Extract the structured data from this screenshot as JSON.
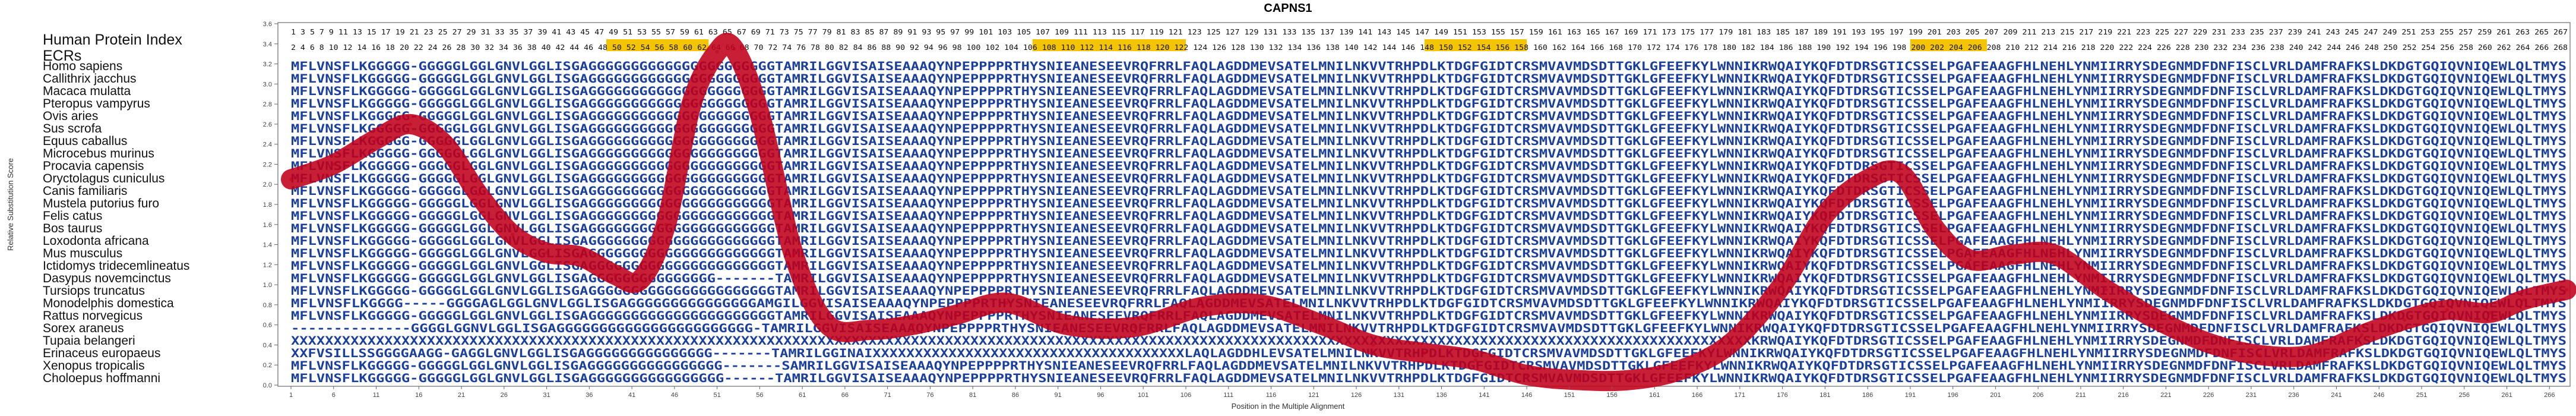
{
  "colors": {
    "curve": "#c0001a",
    "sequence": "#1b3f9c",
    "ecr_band": "#f5c400",
    "mismatch": "#3aa8e0",
    "frame": "#888888"
  },
  "header": {
    "human_index_label": "Human Protein Index",
    "ecr_label": "ECRs",
    "human_index_row1": "1 3 5 7 9 11 13 15 17 19 21 23 25 27 29 31 33 35 37 39 41 43 45 47 49 51 53 55 57 59 61 63 65 67 69 71 73 75 77 79 81 83 85 87 89 91 93 95 97 99 101 103 105 107 109 111 113 115 117 119 121 123 125 127 129 131 133 135 137 139 141 143 145 147 149 151 153 155 157 159 161 163 165 167 169 171 173 175 177 179 181 183 185 187 189 191 193 195 197 199 201 203 205 207 209 211 213 215 217 219 221 223 225 227 229 231 233 235 237 239 241 243 245 247 249 251 253 255 257 259 261 263 265 267",
    "human_index_row2": "2 4 6 8 10 12 14 16 18 20 22 24 26 28 30 32 34 36 38 40 42 44 46 48 50 52 54 56 58 60 62 64 66 68 70 72 74 76 78 80 82 84 86 88 90 92 94 96 98 100 102 104 106 108 110 112 114 116 118 120 122 124 126 128 130 132 134 136 138 140 142 144 146 148 150 152 154 156 158 160 162 164 166 168 170 172 174 176 178 180 182 184 186 188 190 192 194 196 198 200 202 204 206 208 210 212 214 216 218 220 222 224 226 228 230 232 234 236 238 240 242 244 246 248 250 252 254 256 258 260 262 264 266 268"
  },
  "sequences": [
    {
      "species": "Homo sapiens",
      "seq": "MFLVNSFLKGGGGG-GGGGGLGGLGNVLGGLISGAGGGGGGGGGGGGGGGGGGGGGGTAMRILGGVISAISEAAAQYNPEPPPPRTHYSNIEANESEEVRQFRRLFAQLAGDDMEVSATELMNILNKVVTRHPDLKTDGFGIDTCRSMVAVMDSDTTGKLGFEEFKYLWNNIKRWQAIYKQFDTDRSGTICSSELPGAFEAAGFHLNEHLYNMIIRRYSDEGNMDFDNFISCLVRLDAMFRAFKSLDKDGTGQIQVNIQEWLQLTMYS"
    },
    {
      "species": "Callithrix jacchus",
      "seq": "MFLVNSFLKGGGGG-GGGGGLGGLGNVLGGLISGAGGGGGGGGGGGGGGGGGGGGGGTAMRILGGVISAISEAAAQYNPEPPPPRTHYSNIEANESEEVRQFRRLFAQLAGDDMEVSATELMNILNKVVTRHPDLKTDGFGIDTCRSMVAVMDSDTTGKLGFEEFKYLWNNIKRWQAIYKQFDTDRSGTICSSELPGAFEAAGFHLNEHLYNMIIRRYSDEGNMDFDNFISCLVRLDAMFRAFKSLDKDGTGQIQVNIQEWLQLTMYS"
    },
    {
      "species": "Macaca mulatta",
      "seq": "MFLVNSFLKGGGGG-GGGGGLGGLGNVLGGLISGAGGGGGGGGGGGGGGGGGGGGGGTAMRILGGVISAISEAAAQYNPEPPPPRTHYSNIEANESEEVRQFRRLFAQLAGDDMEVSATELMNILNKVVTRHPDLKTDGFGIDTCRSMVAVMDSDTTGKLGFEEFKYLWNNIKRWQAIYKQFDTDRSGTICSSELPGAFEAAGFHLNEHLYNMIIRRYSDEGNMDFDNFISCLVRLDAMFRAFKSLDKDGTGQIQVNIQEWLQLTMYS"
    },
    {
      "species": "Pteropus vampyrus",
      "seq": "MFLVNSFLKGGGGG-GGGGGLGGLGNVLGGLISGAGGGGGGGGGGGGGGGGGGGGGGTAMRILGGVISAISEAAAQYNPEPPPPRTHYSNIEANESEEVRQFRRLFAQLAGDDMEVSATELMNILNKVVTRHPDLKTDGFGIDTCRSMVAVMDSDTTGKLGFEEFKYLWNNIKRWQAIYKQFDTDRSGTICSSELPGAFEAAGFHLNEHLYNMIIRRYSDEGNMDFDNFISCLVRLDAMFRAFKSLDKDGTGQIQVNIQEWLQLTMYS"
    },
    {
      "species": "Ovis aries",
      "seq": "MFLVNSFLKGGGGG-GGGGGLGGLGNVLGGLISGAGGGGGGGGGGGGGGGGGGGGGGTAMRILGGVISAISEAAAQYNPEPPPPRTHYSNIEANESEEVRQFRRLFAQLAGDDMEVSATELMNILNKVVTRHPDLKTDGFGIDTCRSMVAVMDSDTTGKLGFEEFKYLWNNIKRWQAIYKQFDTDRSGTICSSELPGAFEAAGFHLNEHLYNMIIRRYSDEGNMDFDNFISCLVRLDAMFRAFKSLDKDGTGQIQVNIQEWLQLTMYS"
    },
    {
      "species": "Sus scrofa",
      "seq": "MFLVNSFLKGGGGG-GGGGGLGGLGNVLGGLISGAGGGGGGGGGGGGGGGGGGGGGGTAMRILGGVISAISEAAAQYNPEPPPPRTHYSNIEANESEEVRQFRRLFAQLAGDDMEVSATELMNILNKVVTRHPDLKTDGFGIDTCRSMVAVMDSDTTGKLGFEEFKYLWNNIKRWQAIYKQFDTDRSGTICSSELPGAFEAAGFHLNEHLYNMIIRRYSDEGNMDFDNFISCLVRLDAMFRAFKSLDKDGTGQIQVNIQEWLQLTMYS"
    },
    {
      "species": "Equus caballus",
      "seq": "MFLVNSFLKGGGGG-GGGGGLGGLGNVLGGLISGAGGGGGGGGGGGGGGGGGGGGGGTAMRILGGVISAISEAAAQYNPEPPPPRTHYSNIEANESEEVRQFRRLFAQLAGDDMEVSATELMNILNKVVTRHPDLKTDGFGIDTCRSMVAVMDSDTTGKLGFEEFKYLWNNIKRWQAIYKQFDTDRSGTICSSELPGAFEAAGFHLNEHLYNMIIRRYSDEGNMDFDNFISCLVRLDAMFRAFKSLDKDGTGQIQVNIQEWLQLTMYS"
    },
    {
      "species": "Microcebus murinus",
      "seq": "MFLVNSFLKGGGGG-GGGGGLGGLGNVLGGLISGAGGGGGGGGGGGGGGGGGGGGGGTAMRILGGVISAISEAAAQYNPEPPPPRTHYSNIEANESEEVRQFRRLFAQLAGDDMEVSATELMNILNKVVTRHPDLKTDGFGIDTCRSMVAVMDSDTTGKLGFEEFKYLWNNIKRWQAIYKQFDTDRSGTICSSELPGAFEAAGFHLNEHLYNMIIRRYSDEGNMDFDNFISCLVRLDAMFRAFKSLDKDGTGQIQVNIQEWLQLTMYS"
    },
    {
      "species": "Procavia capensis",
      "seq": "MFLVNSFLKGGGGG-GGGGGLGGLGNVLGGLISGAGGGGGGGGGGGGGGGGGGGGGGTAMRILGGVISAISEAAAQYNPEPPPPRTHYSNIEANESEEVRQFRRLFAQLAGDDMEVSATELMNILNKVVTRHPDLKTDGFGIDTCRSMVAVMDSDTTGKLGFEEFKYLWNNIKRWQAIYKQFDTDRSGTICSSELPGAFEAAGFHLNEHLYNMIIRRYSDEGNMDFDNFISCLVRLDAMFRAFKSLDKDGTGQIQVNIQEWLQLTMYS"
    },
    {
      "species": "Oryctolagus cuniculus",
      "seq": "MFLVNSFLKGGGGG-GGGGGLGGLGNVLGGLISGAGGGGGGGGGGGGGGGGGGGGGGTAMRILGGVISAISEAAAQYNPEPPPPRTHYSNIEANESEEVRQFRRLFAQLAGDDMEVSATELMNILNKVVTRHPDLKTDGFGIDTCRSMVAVMDSDTTGKLGFEEFKYLWNNIKRWQAIYKQFDTDRSGTICSSELPGAFEAAGFHLNEHLYNMIIRRYSDEGNMDFDNFISCLVRLDAMFRAFKSLDKDGTGQIQVNIQEWLQLTMYS"
    },
    {
      "species": "Canis familiaris",
      "seq": "MFLVNSFLKGGGGG-GGGGGLGGLGNVLGGLISGAGGGGGGGGGGGGGGGGGGGGGGTAMRILGGVISAISEAAAQYNPEPPPPRTHYSNIEANESEEVRQFRRLFAQLAGDDMEVSATELMNILNKVVTRHPDLKTDGFGIDTCRSMVAVMDSDTTGKLGFEEFKYLWNNIKRWQAIYKQFDTDRSGTICSSELPGAFEAAGFHLNEHLYNMIIRRYSDEGNMDFDNFISCLVRLDAMFRAFKSLDKDGTGQIQVNIQEWLQLTMYS"
    },
    {
      "species": "Mustela putorius furo",
      "seq": "MFLVNSFLKGGGGG-GGGGGLGGLGNVLGGLISGAGGGGGGGGGGGGGGGGGGGGGGTAMRILGGVISAISEAAAQYNPEPPPPRTHYSNIEANESEEVRQFRRLFAQLAGDDMEVSATELMNILNKVVTRHPDLKTDGFGIDTCRSMVAVMDSDTTGKLGFEEFKYLWNNIKRWQAIYKQFDTDRSGTICSSELPGAFEAAGFHLNEHLYNMIIRRYSDEGNMDFDNFISCLVRLDAMFRAFKSLDKDGTGQIQVNIQEWLQLTMYS"
    },
    {
      "species": "Felis catus",
      "seq": "MFLVNSFLKGGGGG-GGGGGLGGLGNVLGGLISGAGGGGGGGGGGGGGGGGGGGGGGTAMRILGGVISAISEAAAQYNPEPPPPRTHYSNIEANESEEVRQFRRLFAQLAGDDMEVSATELMNILNKVVTRHPDLKTDGFGIDTCRSMVAVMDSDTTGKLGFEEFKYLWNNIKRWQAIYKQFDTDRSGTICSSELPGAFEAAGFHLNEHLYNMIIRRYSDEGNMDFDNFISCLVRLDAMFRAFKSLDKDGTGQIQVNIQEWLQLTMYS"
    },
    {
      "species": "Bos taurus",
      "seq": "MFLVNSFLKGGGGG-GGGGGLGGLGNVLGGLISGAGGGGGGGGGGGGGGGGGGGGGGTAMRILGGVISAISEAAAQYNPEPPPPRTHYSNIEANESEEVRQFRRLFAQLAGDDMEVSATELMNILNKVVTRHPDLKTDGFGIDTCRSMVAVMDSDTTGKLGFEEFKYLWNNIKRWQAIYKQFDTDRSGTICSSELPGAFEAAGFHLNEHLYNMIIRRYSDEGNMDFDNFISCLVRLDAMFRAFKSLDKDGTGQIQVNIQEWLQLTMYS"
    },
    {
      "species": "Loxodonta africana",
      "seq": "MFLVNSFLKGGGGG-GGGGGLGGLGNVLGGLISGAGGGGGGGGGGGGGGGGGGGGGGTAMRILGGVISAISEAAAQYNPEPPPPRTHYSNIEANESEEVRQFRRLFAQLAGDDMEVSATELMNILNKVVTRHPDLKTDGFGIDTCRSMVAVMDSDTTGKLGFEEFKYLWNNIKRWQAIYKQFDTDRSGTICSSELPGAFEAAGFHLNEHLYNMIIRRYSDEGNMDFDNFISCLVRLDAMFRAFKSLDKDGTGQIQVNIQEWLQLTMYS"
    },
    {
      "species": "Mus musculus",
      "seq": "MFLVNSFLKGGGGG-GGGGGLGGLGNVLGGLISGAGGGGGGGGGGGGGGGGGGGGGGTAMRILGGVISAISEAAAQYNPEPPPPRTHYSNIEANESEEVRQFRRLFAQLAGDDMEVSATELMNILNKVVTRHPDLKTDGFGIDTCRSMVAVMDSDTTGKLGFEEFKYLWNNIKRWQAIYKQFDTDRSGTICSSELPGAFEAAGFHLNEHLYNMIIRRYSDEGNMDFDNFISCLVRLDAMFRAFKSLDKDGTGQIQVNIQEWLQLTMYS"
    },
    {
      "species": "Ictidomys tridecemlineatus",
      "seq": "MFLVNSFLKGGGGG-GGGGGLGGLGNVLGGLISGAGGGGGGGGGGGGGGGGGGGGGGTAMRILGGVISAISEAAAQYNPEPPPPRTHYSNIEANESEEVRQFRRLFAQLAGDDMEVSATELMNILNKVVTRHPDLKTDGFGIDTCRSMVAVMDSDTTGKLGFEEFKYLWNNIKRWQAIYKQFDTDRSGTICSSELPGAFEAAGFHLNEHLYNMIIRRYSDEGNMDFDNFISCLVRLDAMFRAFKSLDKDGTGQIQVNIQEWLQLTMYS"
    },
    {
      "species": "Dasypus novemcinctus",
      "seq": "MFLVNSFLKGGGGG-GGGGGLGGLGNVLGGLISGAGGGGGGGGGGGGGGG-------TAMRILGGVISAISEAAAQYNPEPPPPRTHYSNIEANESEEVRQFRRLFAQLAGDDMEVSATELMNILNKVVTRHPDLKTDGFGIDTCRSMVAVMDSDTTGKLGFEEFKYLWNNIKRWQAIYKQFDTDRSGTICSSELPGAFEAAGFHLNEHLYNMIIRRYSDEGNMDFDNFISCLVRLDAMFRAFKSLDKDGTGQIQVNIQEWLQLTMYS"
    },
    {
      "species": "Tursiops truncatus",
      "seq": "MFLVNSFLKGGGGG-GGGGGLGGLGNVLGGLISGAGGGGGGGGGGGGGGGGGGGGGGTAMRILGGVISAISEAAAQYNPEPPPPRTHYSNIEANESEEVRQFRRLFAQLAGDDMEVSATELMNILNKVVTRHPDLKTDGFGIDTCRSMVAVMDSDTTGKLGFEEFKYLWNNIKRWQAIYKQFDTDRSGTICSSELPGAFEAAGFHLNEHLYNMIIRRYSDEGNMDFDNFISCLVRLDAMFRAFKSLDKDGTGQIQVNIQEWLQLTMYS"
    },
    {
      "species": "Monodelphis domestica",
      "seq": "MFLVNSFLKGGGG-----GGGGAGLGGLGNVLGGLISGAGGGGGGGGGGGGGGGAMGILGGVISAISEAAAQYNPEPPPPRTHYSNIEANESEEVRQFRRLFAQLAGDDMEVSATELMNILNKVVTRHPDLKTDGFGIDTCRSMVAVMDSDTTGKLGFEEFKYLWNNIKRWQAIYKQFDTDRSGTICSSELPGAFEAAGFHLNEHLYNMIIRRYSDEGNMDFDNFISCLVRLDAMFRAFKSLDKDGTGQIQVNIQEWLQLTMYS"
    },
    {
      "species": "Rattus norvegicus",
      "seq": "MFLVNSFLKGGGGG-GGGGGLGGLGNVLGGLISGAGGGGGGGGGGGGGGGGGGGGGGTAMRILGGVISAISEAAAQYNPEPPPPRTHYSNIEANESEEVRQFRRLFAQLAGDDMEVSATELMNILNKVVTRHPDLKTDGFGIDTCRSMVAVMDSDTTGKLGFEEFKYLWNNIKRWQAIYKQFDTDRSGTICSSELPGAFEAAGFHLNEHLYNMIIRRYSDEGNMDFDNFISCLVRLDAMFRAFKSLDKDGTGQIQVNIQEWLQLTMYS"
    },
    {
      "species": "Sorex araneus",
      "seq": "--------------GGGGLGGNVLGGLISGAGGGGGGGGGGGGGGGGGGGGGGG-TAMRILGGVISAISEAAAQYNPEPPPPRTHYSNIEANESEEVRQFRRLFAQLAGDDMEVSATELMNILNKVVTRHPDLKTDGFGIDTCRSMVAVMDSDTTGKLGFEEFKYLWNNIKRWQAIYKQFDTDRSGTICSSELPGAFEAAGFHLNEHLYNMIIRRYSDEGNMDFDNFISCLVRLDAMFRAFKSLDKDGTGQIQVNIQEWLQLTMYS"
    },
    {
      "species": "Tupaia belangeri",
      "seq": "XXXXXXXXXXXXXXXXXXXXXXXXXXXXXXXXXXXXXXXXXXXXXXXXXXXXXXXXXXXXXXXXXXXXXXXXXXXXXXXXXXXXXXXXXXXXXXXXXXXXXXXXXXXXXXXXXXXXXXXXXXXXXXXXXXXXXXXXXXXXXXXXXXXXXXXXXXXXXXXXXXXXXXXXXXXXKRWQAIYKQFDTDRSGTICSSELPGAFEAAGFHLNEHLYNMIIRRYSDEGNMDFDNFISCLVRLDAMFRAFKSLDKDGTGQIQVNIQEWLQLTMYS"
    },
    {
      "species": "Erinaceus europaeus",
      "seq": "XXFVSILLSSGGGGAAGG-GAGGLGNVLGGLISGAGGGGGGGGGGGGGGG-------TAMRILGGINAIXXXXXXXXXXXXXXXXXXXXXXXXXXXXXXXXXXXXXLAQLAGDDHLEVSATELMNILNKVVTRHPDLKTDGFGIDTCRSMVAVMDSDTTGKLGFEEFKYLWNNIKRWQAIYKQFDTDRSGTICSSELPGAFEAAGFHLNEHLYNMIIRRYSDEGNMDFDNFISCLVRLDAMFRAFKSLDKDGTGQIQVNIQEWLQLTMYS"
    },
    {
      "species": "Xenopus tropicalis",
      "seq": "MFLVNSFLKGGGGG-GGGGGLGGLGNVLGGLISGAGGGGGGGGGGGGGGGG-------SAMRILGGVISAISEAAAQYNPEPPPPRTHYSNIEANESEEVRQFRRLFAQLAGDDMEVSATELMNILNKVVTRHPDLKTDGFGIDTCRSMVAVMDSDTTGKLGFEEFKYLWNNIKRWQAIYKQFDTDRSGTICSSELPGAFEAAGFHLNEHLYNMIIRRYSDEGNMDFDNFISCLVRLDAMFRAFKSLDKDGTGQIQVNIQEWLQLTMYS"
    },
    {
      "species": "Choloepus hoffmanni",
      "seq": "MFLVNSFLKGGGGG-GGGGGLGGLGNVLGGLISGAGGGGGGGGGGGGGGGG------TAMRILGGVISAISEAAAQYNPEPPPPRTHYSNIEANESEEVRQFRRLFAQLAGDDMEVSATELMNILNKVVTRHPDLKTDGFGIDTCRSMVAVMDSDTTGKLGFEEFKYLWNNIKRWQAIYKQFDTDRSGTICSSELPGAFEAAGFHLNEHLYNMIIRRYSDEGNMDFDNFISCLVRLDAMFRAFKSLDKDGTGQIQVNIQEWLQLTMYS"
    }
  ],
  "chart_data": {
    "type": "line",
    "title": "CAPNS1",
    "xlabel": "Position in the Multiple Alignment",
    "ylabel": "Relative Substitution Score",
    "xlim": [
      1,
      268
    ],
    "ylim": [
      0,
      3.6
    ],
    "xticks": [
      1,
      6,
      11,
      16,
      21,
      26,
      31,
      36,
      41,
      46,
      51,
      56,
      61,
      66,
      71,
      76,
      81,
      86,
      91,
      96,
      101,
      106,
      111,
      116,
      121,
      126,
      131,
      136,
      141,
      146,
      151,
      156,
      161,
      166,
      171,
      176,
      181,
      186,
      191,
      196,
      201,
      206,
      211,
      216,
      221,
      226,
      231,
      236,
      241,
      246,
      251,
      256,
      261,
      266
    ],
    "xtick_labels": [
      "1",
      "6",
      "11",
      "16",
      "21",
      "26",
      "31",
      "36",
      "41",
      "46",
      "51",
      "56",
      "61",
      "66",
      "71",
      "76",
      "81",
      "86",
      "91",
      "96",
      "101",
      "106",
      "111",
      "116",
      "121",
      "126",
      "131",
      "136",
      "141",
      "146",
      "151",
      "156",
      "161",
      "166",
      "171",
      "176",
      "181",
      "186",
      "191",
      "196",
      "201",
      "206",
      "211",
      "216",
      "221",
      "226",
      "231",
      "236",
      "241",
      "246",
      "251",
      "256",
      "261",
      "266"
    ],
    "yticks": [
      0.0,
      0.2,
      0.4,
      0.6,
      0.8,
      1.0,
      1.2,
      1.4,
      1.6,
      1.8,
      2.0,
      2.2,
      2.4,
      2.6,
      2.8,
      3.0,
      3.2,
      3.4,
      3.6
    ],
    "ytick_labels": [
      "0.0",
      "0.2",
      "0.4",
      "0.6",
      "0.8",
      "1.0",
      "1.2",
      "1.4",
      "1.6",
      "1.8",
      "2.0",
      "2.2",
      "2.4",
      "2.6",
      "2.8",
      "3.0",
      "3.2",
      "3.4",
      "3.6"
    ],
    "series": [
      {
        "x": [
          1,
          6,
          11,
          15,
          19,
          23,
          27,
          31,
          35,
          39,
          42,
          45,
          48,
          51,
          53,
          56,
          60,
          64,
          69,
          74,
          79,
          85,
          92,
          100,
          108,
          115,
          122,
          128,
          134,
          140,
          146,
          152,
          158,
          164,
          170,
          176,
          181,
          186,
          190,
          194,
          198,
          203,
          208,
          214,
          220,
          226,
          232,
          238,
          244,
          249,
          254,
          259,
          263,
          268
        ],
        "y": [
          2.05,
          2.2,
          2.45,
          2.6,
          2.4,
          1.9,
          1.5,
          1.32,
          1.28,
          1.1,
          1.05,
          1.6,
          2.8,
          3.32,
          3.35,
          2.7,
          1.3,
          0.6,
          0.55,
          0.6,
          0.7,
          0.82,
          0.6,
          0.58,
          0.78,
          0.8,
          0.6,
          0.4,
          0.32,
          0.25,
          0.1,
          0.05,
          0.05,
          0.15,
          0.42,
          1.0,
          1.7,
          2.05,
          2.1,
          1.55,
          1.25,
          1.3,
          1.3,
          0.95,
          0.65,
          0.42,
          0.3,
          0.3,
          0.5,
          0.65,
          0.75,
          0.72,
          0.85,
          0.95
        ]
      }
    ],
    "ecr_regions": [
      [
        38,
        50
      ],
      [
        88,
        106
      ],
      [
        134,
        146
      ],
      [
        191,
        200
      ]
    ],
    "grid": false
  }
}
